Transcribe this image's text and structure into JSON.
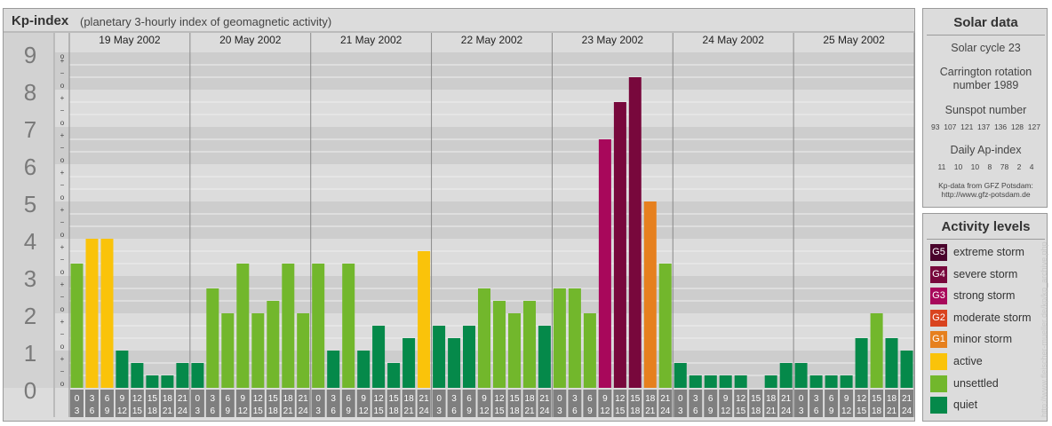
{
  "header": {
    "title": "Kp-index",
    "subtitle": "(planetary 3-hourly index of geomagnetic activity)"
  },
  "chart_data": {
    "type": "bar",
    "title": "Kp-index",
    "subtitle": "(planetary 3-hourly index of geomagnetic activity)",
    "ylim": [
      0,
      9
    ],
    "y_ticks": [
      "0",
      "1",
      "2",
      "3",
      "4",
      "5",
      "6",
      "7",
      "8",
      "9"
    ],
    "y_minor_labels": [
      "o",
      "−",
      "+"
    ],
    "days": [
      "19 May 2002",
      "20 May 2002",
      "21 May 2002",
      "22 May 2002",
      "23 May 2002",
      "24 May 2002",
      "25 May 2002"
    ],
    "interval_starts": [
      "0",
      "3",
      "6",
      "9",
      "12",
      "15",
      "18",
      "21"
    ],
    "interval_ends": [
      "3",
      "6",
      "9",
      "12",
      "15",
      "18",
      "21",
      "24"
    ],
    "values": [
      [
        3.333,
        4.0,
        4.0,
        1.0,
        0.667,
        0.333,
        0.333,
        0.667
      ],
      [
        0.667,
        2.667,
        2.0,
        3.333,
        2.0,
        2.333,
        3.333,
        2.0
      ],
      [
        3.333,
        1.0,
        3.333,
        1.0,
        1.667,
        0.667,
        1.333,
        3.667
      ],
      [
        1.667,
        1.333,
        1.667,
        2.667,
        2.333,
        2.0,
        2.333,
        1.667
      ],
      [
        2.667,
        2.667,
        2.0,
        6.667,
        7.667,
        8.333,
        5.0,
        3.333
      ],
      [
        0.667,
        0.333,
        0.333,
        0.333,
        0.333,
        0.0,
        0.333,
        0.667
      ],
      [
        0.667,
        0.333,
        0.333,
        0.333,
        1.333,
        2.0,
        1.333,
        1.0
      ]
    ],
    "level_colors": {
      "quiet": "#05894a",
      "unsettled": "#72b72c",
      "active": "#fac30a",
      "G1": "#e6801e",
      "G2": "#d9431e",
      "G3": "#a8085b",
      "G4": "#78083c",
      "G5": "#4a042c"
    },
    "grid": true
  },
  "solar": {
    "title": "Solar data",
    "cycle": "Solar cycle 23",
    "carrington_line1": "Carrington rotation",
    "carrington_line2": "number 1989",
    "sunspot_label": "Sunspot number",
    "sunspot_values": "93  107  121  137  136  128  127",
    "ap_label": "Daily Ap-index",
    "ap_values": "11    10    10    8    78    2    4",
    "source_line1": "Kp-data from GFZ Potsdam:",
    "source_line2": "http://www.gfz-potsdam.de"
  },
  "activity": {
    "title": "Activity levels",
    "items": [
      {
        "code": "G5",
        "label": "extreme storm",
        "color": "#4a042c"
      },
      {
        "code": "G4",
        "label": "severe storm",
        "color": "#78083c"
      },
      {
        "code": "G3",
        "label": "strong storm",
        "color": "#a8085b"
      },
      {
        "code": "G2",
        "label": "moderate storm",
        "color": "#d9431e"
      },
      {
        "code": "G1",
        "label": "minor storm",
        "color": "#e6801e"
      },
      {
        "code": "",
        "label": "active",
        "color": "#fac30a"
      },
      {
        "code": "",
        "label": "unsettled",
        "color": "#72b72c"
      },
      {
        "code": "",
        "label": "quiet",
        "color": "#05894a"
      }
    ]
  },
  "watermark": "http://www.fleischer-mueller.de/kp/kp_archive.php"
}
